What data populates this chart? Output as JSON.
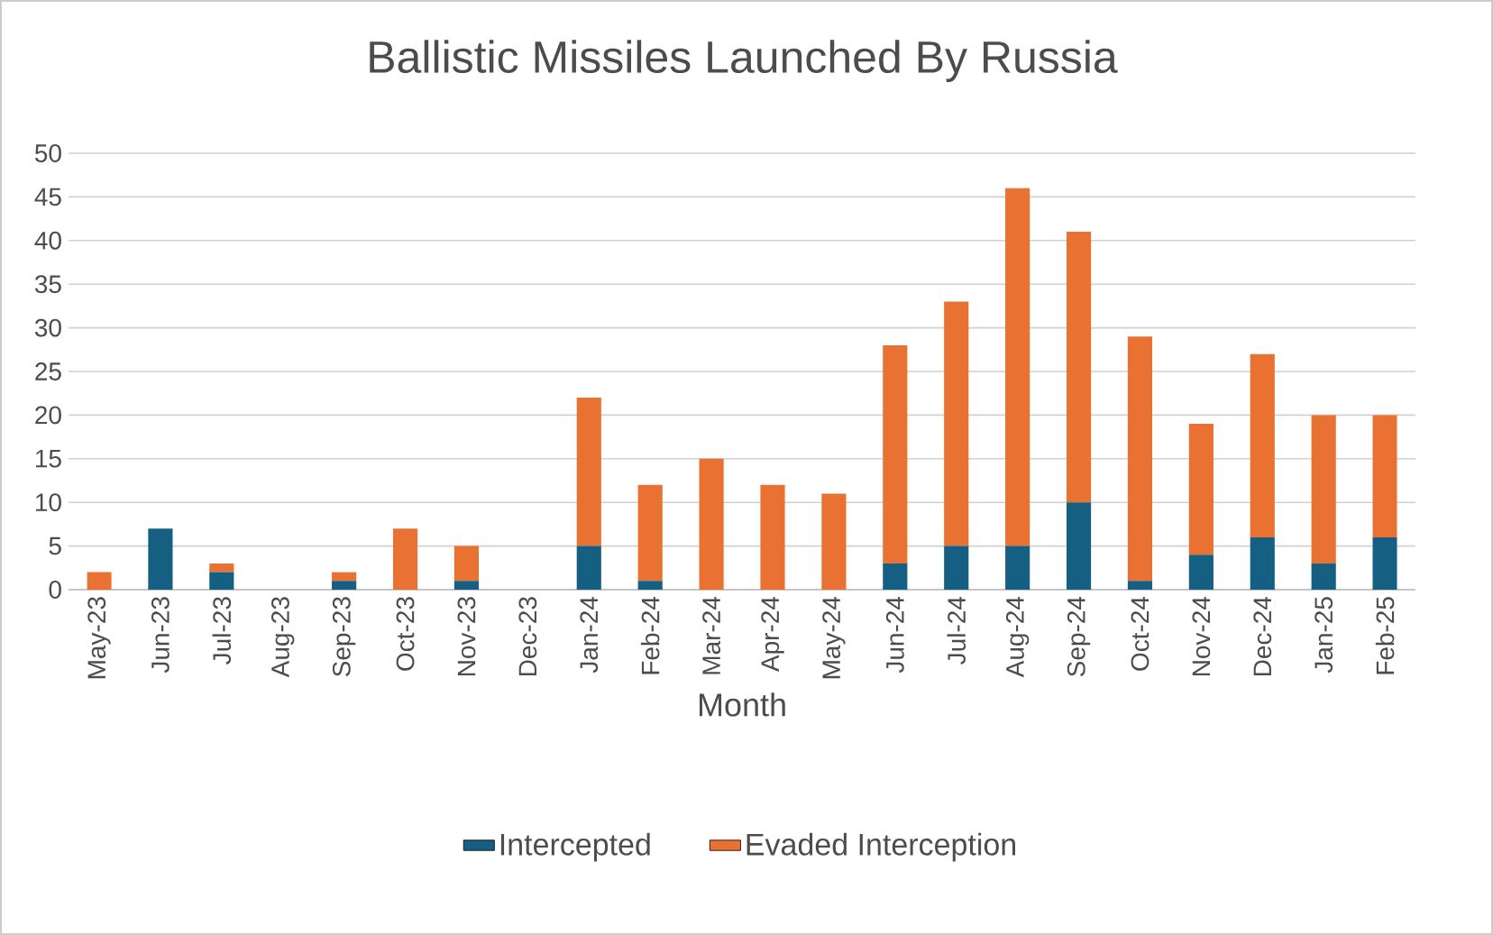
{
  "chart_data": {
    "type": "bar",
    "title": "Ballistic Missiles Launched By Russia",
    "xlabel": "Month",
    "stacked": true,
    "categories": [
      "May-23",
      "Jun-23",
      "Jul-23",
      "Aug-23",
      "Sep-23",
      "Oct-23",
      "Nov-23",
      "Dec-23",
      "Jan-24",
      "Feb-24",
      "Mar-24",
      "Apr-24",
      "May-24",
      "Jun-24",
      "Jul-24",
      "Aug-24",
      "Sep-24",
      "Oct-24",
      "Nov-24",
      "Dec-24",
      "Jan-25",
      "Feb-25"
    ],
    "series": [
      {
        "name": "Intercepted",
        "color": "#156082",
        "values": [
          0,
          7,
          2,
          0,
          1,
          0,
          1,
          0,
          5,
          1,
          0,
          0,
          0,
          3,
          5,
          5,
          10,
          1,
          4,
          6,
          3,
          6
        ]
      },
      {
        "name": "Evaded Interception",
        "color": "#e97132",
        "values": [
          2,
          0,
          1,
          0,
          1,
          7,
          4,
          0,
          17,
          11,
          15,
          12,
          11,
          25,
          28,
          41,
          31,
          28,
          15,
          21,
          17,
          14
        ]
      }
    ],
    "ylim": [
      0,
      50
    ],
    "yticks": [
      0,
      5,
      10,
      15,
      20,
      25,
      30,
      35,
      40,
      45,
      50
    ],
    "grid": "y",
    "legend": "bottom"
  }
}
